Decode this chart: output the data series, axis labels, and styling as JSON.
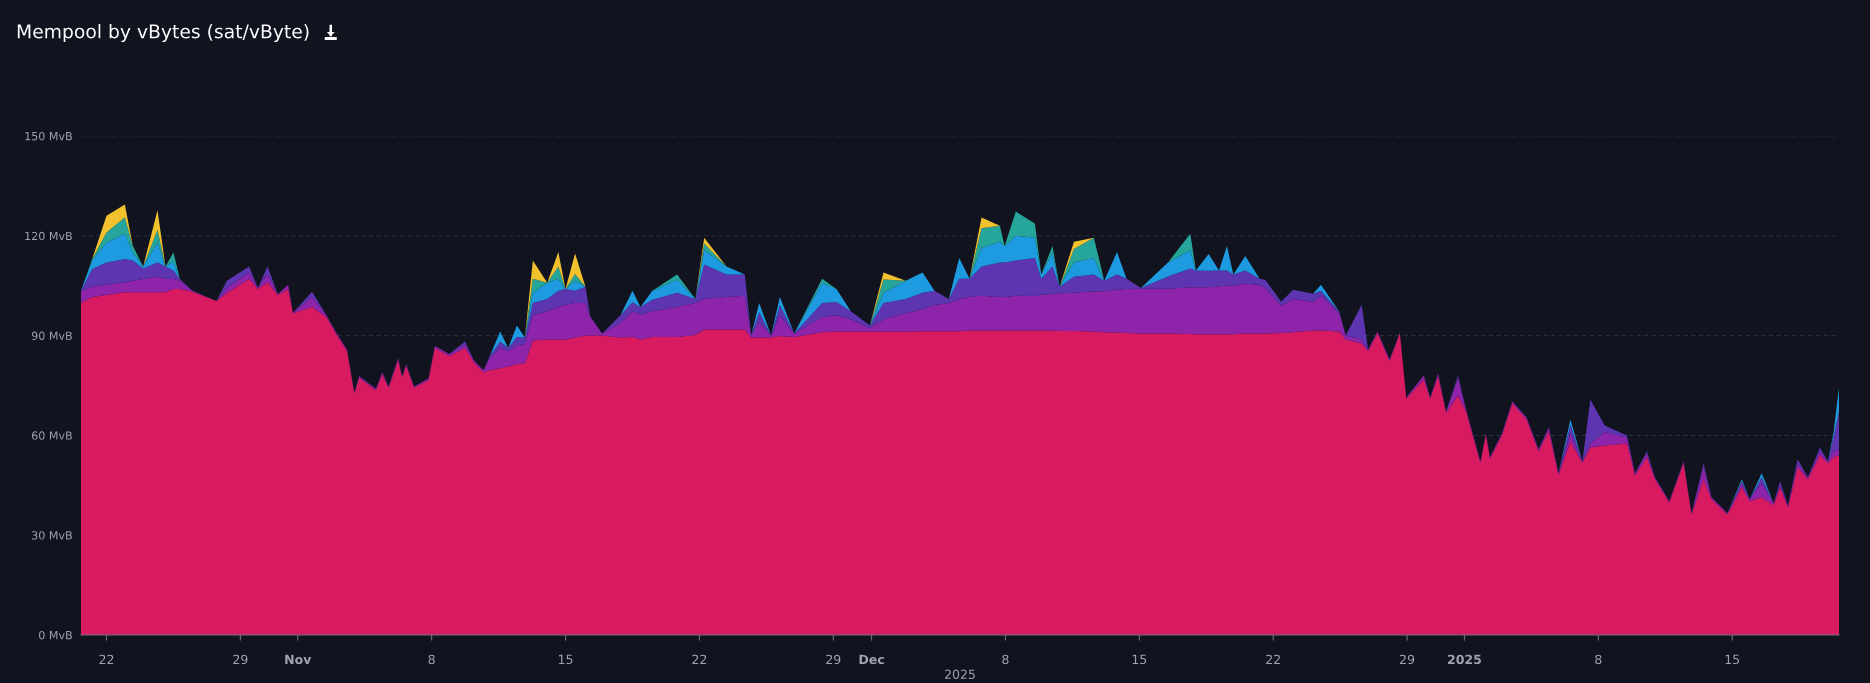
{
  "chart_data": {
    "type": "area",
    "stacked": true,
    "title": "Mempool by vBytes (sat/vByte)",
    "xlabel": "2025",
    "x": [
      "2024-10-20T16:00",
      "2024-10-21T06:00",
      "2024-10-22T00:00",
      "2024-10-22T23:00",
      "2024-10-23T09:00",
      "2024-10-23T22:00",
      "2024-10-24T16:00",
      "2024-10-25T02:00",
      "2024-10-25T12:00",
      "2024-10-25T20:00",
      "2024-10-26T12:00",
      "2024-10-27T18:00",
      "2024-10-28T07:00",
      "2024-10-29T11:00",
      "2024-10-29T22:00",
      "2024-10-30T10:00",
      "2024-10-30T23:00",
      "2024-10-31T12:00",
      "2024-10-31T18:00",
      "2024-11-01T18:00",
      "2024-11-02T12:00",
      "2024-11-03T01:00",
      "2024-11-03T14:00",
      "2024-11-03T23:00",
      "2024-11-04T05:00",
      "2024-11-05T02:00",
      "2024-11-05T10:00",
      "2024-11-05T18:00",
      "2024-11-06T06:00",
      "2024-11-06T11:00",
      "2024-11-06T16:00",
      "2024-11-07T02:00",
      "2024-11-07T20:00",
      "2024-11-08T04:00",
      "2024-11-08T22:00",
      "2024-11-09T18:00",
      "2024-11-10T05:00",
      "2024-11-10T17:00",
      "2024-11-11T01:00",
      "2024-11-11T14:00",
      "2024-11-12T00:00",
      "2024-11-12T11:00",
      "2024-11-12T21:00",
      "2024-11-13T07:00",
      "2024-11-14T01:00",
      "2024-11-14T15:00",
      "2024-11-15T00:00",
      "2024-11-15T12:00",
      "2024-11-16T01:00",
      "2024-11-16T07:00",
      "2024-11-16T22:00",
      "2024-11-17T21:00",
      "2024-11-18T12:00",
      "2024-11-18T22:00",
      "2024-11-19T13:00",
      "2024-11-20T20:00",
      "2024-11-21T19:00",
      "2024-11-22T06:00",
      "2024-11-23T10:00",
      "2024-11-24T09:00",
      "2024-11-24T17:00",
      "2024-11-25T03:00",
      "2024-11-25T18:00",
      "2024-11-26T05:00",
      "2024-11-26T23:00",
      "2024-11-28T10:00",
      "2024-11-29T04:00",
      "2024-11-29T22:00",
      "2024-11-30T22:00",
      "2024-12-01T15:00",
      "2024-12-02T19:00",
      "2024-12-03T16:00",
      "2024-12-04T07:00",
      "2024-12-05T01:00",
      "2024-12-05T14:00",
      "2024-12-06T03:00",
      "2024-12-06T18:00",
      "2024-12-07T17:00",
      "2024-12-07T23:00",
      "2024-12-08T13:00",
      "2024-12-09T13:00",
      "2024-12-09T21:00",
      "2024-12-10T11:00",
      "2024-12-10T20:00",
      "2024-12-11T14:00",
      "2024-12-12T15:00",
      "2024-12-13T04:00",
      "2024-12-13T20:00",
      "2024-12-14T08:00",
      "2024-12-15T02:00",
      "2024-12-16T12:00",
      "2024-12-17T16:00",
      "2024-12-17T23:00",
      "2024-12-18T15:00",
      "2024-12-19T04:00",
      "2024-12-19T14:00",
      "2024-12-19T22:00",
      "2024-12-20T13:00",
      "2024-12-21T07:00",
      "2024-12-21T14:00",
      "2024-12-22T10:00",
      "2024-12-23T01:00",
      "2024-12-24T02:00",
      "2024-12-24T12:00",
      "2024-12-25T11:00",
      "2024-12-25T19:00",
      "2024-12-26T15:00",
      "2024-12-26T23:00",
      "2024-12-27T11:00",
      "2024-12-28T02:00",
      "2024-12-28T15:00",
      "2024-12-28T23:00",
      "2024-12-29T21:00",
      "2024-12-30T05:00",
      "2024-12-30T15:00",
      "2024-12-31T01:00",
      "2024-12-31T16:00",
      "2025-01-01T02:00",
      "2025-01-01T20:00",
      "2025-01-02T03:00",
      "2025-01-02T08:00",
      "2025-01-02T23:00",
      "2025-01-03T12:00",
      "2025-01-04T06:00",
      "2025-01-04T21:00",
      "2025-01-05T10:00",
      "2025-01-05T22:00",
      "2025-01-06T13:00",
      "2025-01-07T04:00",
      "2025-01-07T14:00",
      "2025-01-08T08:00",
      "2025-01-09T12:00",
      "2025-01-09T22:00",
      "2025-01-10T13:00",
      "2025-01-10T23:00",
      "2025-01-11T17:00",
      "2025-01-12T11:00",
      "2025-01-12T21:00",
      "2025-01-13T12:00",
      "2025-01-13T22:00",
      "2025-01-14T18:00",
      "2025-01-15T12:00",
      "2025-01-15T22:00",
      "2025-01-16T13:00",
      "2025-01-17T04:00",
      "2025-01-17T12:00",
      "2025-01-17T22:00",
      "2025-01-18T10:00",
      "2025-01-18T23:00",
      "2025-01-19T14:00",
      "2025-01-20T00:00",
      "2025-01-20T07:00",
      "2025-01-20T14:00"
    ],
    "series": [
      {
        "color": "#d81b60",
        "values": [
          99.8,
          101.6,
          102.2,
          103,
          103,
          103,
          103,
          103,
          104,
          104,
          103.2,
          100.4,
          102.8,
          107,
          104,
          106,
          102.2,
          104,
          96.7,
          98.6,
          95.6,
          90.2,
          85.3,
          72.5,
          77.3,
          73.6,
          78.4,
          74.3,
          82.6,
          77.4,
          80.9,
          74.3,
          76.6,
          86.3,
          83.9,
          86.3,
          82,
          79,
          79.6,
          80.2,
          80.7,
          81.4,
          81.7,
          88.5,
          88.8,
          88.8,
          88.8,
          89.4,
          90,
          90,
          90,
          89.4,
          89.6,
          88.8,
          89.6,
          89.6,
          90.2,
          91.8,
          91.8,
          91.8,
          89.4,
          89.4,
          89.4,
          89.9,
          89.6,
          91,
          91.2,
          91.2,
          91.2,
          91.2,
          91.2,
          91.3,
          91.3,
          91.3,
          91.3,
          91.5,
          91.5,
          91.5,
          91.5,
          91.5,
          91.5,
          91.5,
          91.5,
          91.4,
          91.4,
          91.2,
          91,
          90.9,
          90.8,
          90.6,
          90.6,
          90.5,
          90.4,
          90.4,
          90.4,
          90.4,
          90.4,
          90.6,
          90.6,
          90.6,
          90.8,
          91,
          91.5,
          91.5,
          91.2,
          88.8,
          87.6,
          85.4,
          90.8,
          82.3,
          90.7,
          71,
          76.8,
          71,
          77.8,
          66.8,
          72,
          67.2,
          51.8,
          60.2,
          53,
          60,
          69.6,
          64.8,
          55.2,
          61.2,
          48.2,
          58.2,
          51.8,
          56.4,
          57,
          57.6,
          48,
          53.4,
          46.8,
          39.8,
          51.6,
          36.2,
          46.8,
          40.8,
          36.2,
          44.4,
          40.2,
          41.4,
          39,
          44.4,
          38.4,
          50.4,
          46.8,
          54,
          51.6,
          53.4,
          54
        ]
      },
      {
        "color": "#8e24aa",
        "values": [
          3.7,
          3.1,
          3.1,
          3,
          3.5,
          4,
          4.8,
          4,
          3,
          2.5,
          0.3,
          0,
          1.5,
          2.0,
          0.3,
          2.5,
          0.3,
          1.3,
          0.2,
          3.0,
          0.5,
          0.4,
          0.4,
          0.4,
          0.5,
          0.4,
          0.6,
          0.4,
          0.7,
          0.4,
          0.5,
          0.4,
          0.5,
          0.6,
          0.6,
          1.0,
          0.6,
          0.6,
          3.7,
          6.1,
          4.6,
          5.7,
          5.8,
          7.6,
          8.5,
          9.8,
          10.4,
          10.4,
          9.8,
          5.5,
          0.6,
          4.5,
          7.7,
          7.5,
          7.7,
          9.0,
          9.6,
          9.2,
          9.8,
          10.2,
          0.6,
          4.6,
          0.6,
          6.2,
          1.0,
          4.5,
          4.9,
          3.7,
          1.0,
          3.7,
          5.5,
          6.6,
          7.9,
          8.5,
          9.7,
          10.1,
          10.5,
          10.1,
          10.1,
          10.5,
          10.4,
          10.8,
          11,
          11.3,
          11.5,
          12.1,
          12.3,
          12.9,
          13.2,
          13.5,
          13.5,
          14,
          14.1,
          14.1,
          14.4,
          14.6,
          14.6,
          15,
          14.7,
          13.8,
          8.2,
          10,
          8.7,
          10.5,
          5.4,
          1.2,
          1.2,
          0.4,
          0.4,
          0.5,
          0.2,
          0.4,
          1.2,
          0.4,
          0.8,
          0.4,
          5.2,
          0.6,
          0.4,
          0.4,
          0.4,
          0.6,
          0.6,
          0.6,
          0.6,
          1.2,
          0.4,
          2.4,
          0.4,
          1.2,
          4.0,
          1.8,
          0.6,
          1.2,
          0.6,
          0.4,
          0.6,
          0.4,
          3.6,
          0.6,
          0.4,
          1.2,
          0.6,
          4.2,
          0.6,
          0.6,
          0.6,
          1.2,
          0.6,
          1.2,
          0.6,
          1.8,
          1.8
        ]
      },
      {
        "color": "#5e35b1",
        "values": [
          0,
          5.3,
          6.7,
          7,
          6.1,
          3.2,
          4.2,
          3.8,
          2.6,
          0.5,
          0,
          0,
          2.2,
          1.8,
          0,
          2.3,
          0,
          0,
          0,
          1.6,
          0,
          0,
          0,
          0,
          0,
          0,
          0,
          0,
          0,
          0,
          0,
          0,
          0,
          0,
          0,
          0.9,
          0,
          0,
          0.6,
          1.9,
          1.0,
          2.5,
          1.9,
          3.7,
          3.7,
          4.9,
          4.8,
          3.7,
          4.9,
          0.3,
          0,
          2.2,
          2.7,
          2.3,
          3.5,
          4.3,
          1.2,
          10.4,
          6.8,
          6.4,
          0,
          3.0,
          0,
          3.0,
          0,
          4.3,
          4.0,
          2.4,
          0.8,
          4.9,
          4.3,
          5.0,
          4.3,
          1.2,
          6.1,
          5.5,
          8.8,
          10.4,
          10.4,
          10.6,
          11.4,
          4.8,
          8.3,
          2.0,
          4.8,
          5.1,
          3.2,
          4.6,
          3.1,
          0.2,
          3.7,
          5.7,
          5.1,
          5.0,
          4.8,
          4.6,
          3.4,
          4,
          1.8,
          2.4,
          1.2,
          2.8,
          2.4,
          1.5,
          0.6,
          0,
          10.5,
          0,
          0,
          0,
          0,
          0,
          0,
          0,
          0,
          0,
          0.8,
          0,
          0,
          0,
          0,
          0,
          0,
          0,
          0,
          0,
          0,
          2.6,
          0,
          13.2,
          2.0,
          0.6,
          0,
          0.6,
          0,
          0,
          0,
          0,
          1.2,
          0,
          0,
          0.6,
          0,
          1.8,
          0,
          1.2,
          0,
          1.2,
          0,
          1.2,
          0,
          4.2,
          11.4
        ]
      },
      {
        "color": "#1e9be0",
        "values": [
          0,
          2.6,
          6.0,
          7.6,
          2.4,
          0.6,
          6,
          0,
          2.7,
          0,
          0,
          0,
          0,
          0,
          0,
          0,
          0,
          0,
          0,
          0,
          0,
          0,
          0,
          0,
          0,
          0,
          0,
          0,
          0,
          0,
          0,
          0,
          0,
          0,
          0,
          0,
          0,
          0,
          0,
          3.0,
          0,
          3.4,
          0,
          3.1,
          4.9,
          3.6,
          0,
          3.0,
          0,
          0,
          0,
          0,
          3.5,
          0,
          2.7,
          4.0,
          0,
          4.3,
          2.4,
          0,
          0,
          2.8,
          0,
          2.5,
          0,
          6.1,
          3.9,
          0,
          0,
          3.1,
          5.5,
          6.1,
          0,
          0,
          6.2,
          0,
          5.5,
          6.2,
          4.9,
          7.4,
          6.1,
          1.3,
          4.1,
          0,
          4.3,
          4.9,
          0,
          6.7,
          0,
          0,
          4.2,
          5.5,
          0,
          5.0,
          0,
          7.3,
          0,
          4.3,
          0,
          0,
          0,
          0,
          0,
          1.8,
          0,
          0,
          0,
          0,
          0,
          0,
          0,
          0,
          0,
          0,
          0,
          0,
          0,
          0,
          0,
          0,
          0,
          0,
          0,
          0,
          0,
          0,
          0,
          1.6,
          0,
          0,
          0,
          0,
          0,
          0,
          0,
          0,
          0,
          0,
          0,
          0,
          0,
          0.6,
          0,
          1.2,
          0,
          0,
          0,
          0,
          0,
          0,
          0,
          1.2,
          7.2
        ]
      },
      {
        "color": "#26a69a",
        "values": [
          0,
          0.4,
          3.0,
          4.9,
          2.0,
          0,
          3.8,
          0,
          2.7,
          0,
          0,
          0,
          0,
          0,
          0,
          0,
          0,
          0,
          0,
          0,
          0,
          0,
          0,
          0,
          0,
          0,
          0,
          0,
          0,
          0,
          0,
          0,
          0,
          0,
          0,
          0,
          0,
          0,
          0,
          0,
          0,
          0,
          0,
          4.2,
          0,
          3.7,
          0,
          2.0,
          0,
          0,
          0,
          0,
          0,
          0,
          0,
          1.5,
          0,
          2.0,
          0,
          0,
          0,
          0,
          0,
          0,
          0,
          1.2,
          0,
          0,
          0,
          4.0,
          0,
          0,
          0,
          0,
          0,
          0,
          6.0,
          4.8,
          0,
          7.3,
          4.3,
          0,
          2.0,
          0,
          4.0,
          6.1,
          0,
          0,
          0,
          0,
          0,
          4.9,
          0,
          0,
          0,
          0,
          0,
          0,
          0,
          0,
          0,
          0,
          0,
          0,
          0,
          0,
          0,
          0,
          0,
          0,
          0,
          0,
          0,
          0,
          0,
          0,
          0,
          0,
          0,
          0,
          0,
          0,
          0,
          0,
          0,
          0,
          0,
          0,
          0,
          0,
          0,
          0,
          0,
          0,
          0,
          0,
          0,
          0,
          0,
          0,
          0,
          0,
          0,
          0,
          0,
          0,
          0,
          0,
          0,
          0,
          0,
          0,
          0
        ]
      },
      {
        "color": "#f2c12e",
        "values": [
          0,
          0,
          5.0,
          3.9,
          0,
          0,
          5.9,
          0,
          0,
          0,
          0,
          0,
          0,
          0,
          0,
          0,
          0,
          0,
          0,
          0,
          0,
          0,
          0,
          0,
          0,
          0,
          0,
          0,
          0,
          0,
          0,
          0,
          0,
          0,
          0,
          0,
          0,
          0,
          0,
          0,
          0,
          0,
          0,
          5.5,
          0,
          4.3,
          0,
          6.2,
          0,
          0,
          0,
          0,
          0,
          0,
          0,
          0,
          0,
          1.7,
          0,
          0,
          0,
          0,
          0,
          0,
          0,
          0,
          0,
          0,
          0,
          2.1,
          0,
          0,
          0,
          0,
          0,
          0,
          3.2,
          0,
          0,
          0,
          0,
          0,
          0,
          0,
          2.2,
          0,
          0,
          0,
          0,
          0,
          0,
          0,
          0,
          0,
          0,
          0,
          0,
          0,
          0,
          0,
          0,
          0,
          0,
          0,
          0,
          0,
          0,
          0,
          0,
          0,
          0,
          0,
          0,
          0,
          0,
          0,
          0,
          0,
          0,
          0,
          0,
          0,
          0,
          0,
          0,
          0,
          0,
          0,
          0,
          0,
          0,
          0,
          0,
          0,
          0,
          0,
          0,
          0,
          0,
          0,
          0,
          0,
          0,
          0,
          0,
          0,
          0,
          0,
          0,
          0,
          0,
          0,
          0
        ]
      }
    ],
    "xlim": [
      "2024-10-20T16:00",
      "2025-01-20T14:00"
    ],
    "xticks": [
      {
        "value": "2024-10-22",
        "label": "22"
      },
      {
        "value": "2024-10-29",
        "label": "29"
      },
      {
        "value": "2024-11-01",
        "label": "Nov"
      },
      {
        "value": "2024-11-08",
        "label": "8"
      },
      {
        "value": "2024-11-15",
        "label": "15"
      },
      {
        "value": "2024-11-22",
        "label": "22"
      },
      {
        "value": "2024-11-29",
        "label": "29"
      },
      {
        "value": "2024-12-01",
        "label": "Dec"
      },
      {
        "value": "2024-12-08",
        "label": "8"
      },
      {
        "value": "2024-12-15",
        "label": "15"
      },
      {
        "value": "2024-12-22",
        "label": "22"
      },
      {
        "value": "2024-12-29",
        "label": "29"
      },
      {
        "value": "2025-01-01",
        "label": "2025"
      },
      {
        "value": "2025-01-08",
        "label": "8"
      },
      {
        "value": "2025-01-15",
        "label": "15"
      }
    ],
    "ylim": [
      0,
      150
    ],
    "yticks": [
      {
        "value": 0,
        "label": "0 MvB"
      },
      {
        "value": 30,
        "label": "30 MvB"
      },
      {
        "value": 60,
        "label": "60 MvB"
      },
      {
        "value": 90,
        "label": "90 MvB"
      },
      {
        "value": 120,
        "label": "120 MvB"
      },
      {
        "value": 150,
        "label": "150 MvB"
      }
    ],
    "grid": "y"
  }
}
